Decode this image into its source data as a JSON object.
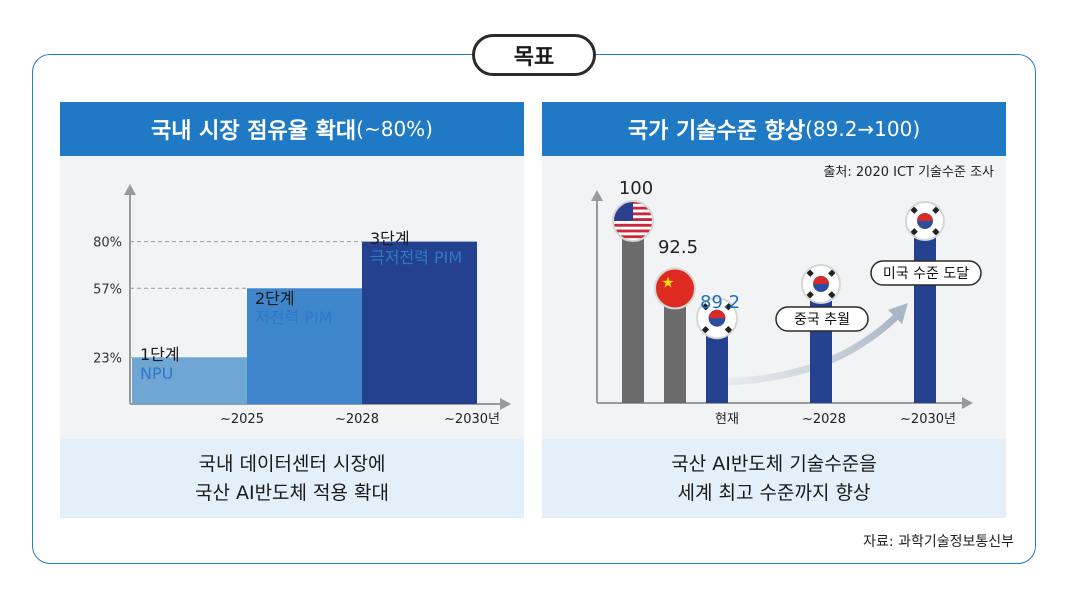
{
  "badge": "목표",
  "left": {
    "title_main": "국내 시장 점유율 확대",
    "title_sub": "(~80%)",
    "footer_line1": "국내 데이터센터 시장에",
    "footer_line2": "국산 AI반도체 적용 확대"
  },
  "right": {
    "title_main": "국가 기술수준 향상",
    "title_sub": "(89.2→100)",
    "note": "출처: 2020 ICT 기술수준 조사",
    "callout_1": "중국 추월",
    "callout_2": "미국 수준 도달",
    "footer_line1": "국산 AI반도체 기술수준을",
    "footer_line2": "세계 최고 수준까지 향상"
  },
  "source": "자료: 과학기술정보통신부",
  "colors": {
    "accent": "#1f79c5",
    "frame": "#1f7fc6",
    "gray_bar": "#6b6b6b",
    "navy_bar": "#23418f"
  },
  "chart_data": [
    {
      "type": "bar",
      "categories": [
        "~2025",
        "~2028",
        "~2030년"
      ],
      "values": [
        23,
        57,
        80
      ],
      "yticks": [
        "23%",
        "57%",
        "80%"
      ],
      "stage_labels": [
        "1단계",
        "2단계",
        "3단계"
      ],
      "stage_products": [
        "NPU",
        "저전력 PIM",
        "극저전력 PIM"
      ],
      "ylim": [
        0,
        100
      ],
      "colors": [
        "#6fa6d3",
        "#3e85cb",
        "#23418f"
      ]
    },
    {
      "type": "bar",
      "categories": [
        "현재",
        "~2028",
        "~2030년"
      ],
      "series": [
        {
          "values": [
            100,
            92.5,
            89.2
          ],
          "flags": [
            "usa-flag-icon",
            "china-flag-icon",
            "korea-flag-icon"
          ]
        },
        {
          "values": [
            null,
            93,
            100
          ],
          "flags": [
            "",
            "korea-flag-icon",
            "korea-flag-icon"
          ]
        }
      ],
      "value_labels": [
        "100",
        "92.5",
        "89.2"
      ],
      "ylim": [
        80,
        103
      ]
    }
  ]
}
